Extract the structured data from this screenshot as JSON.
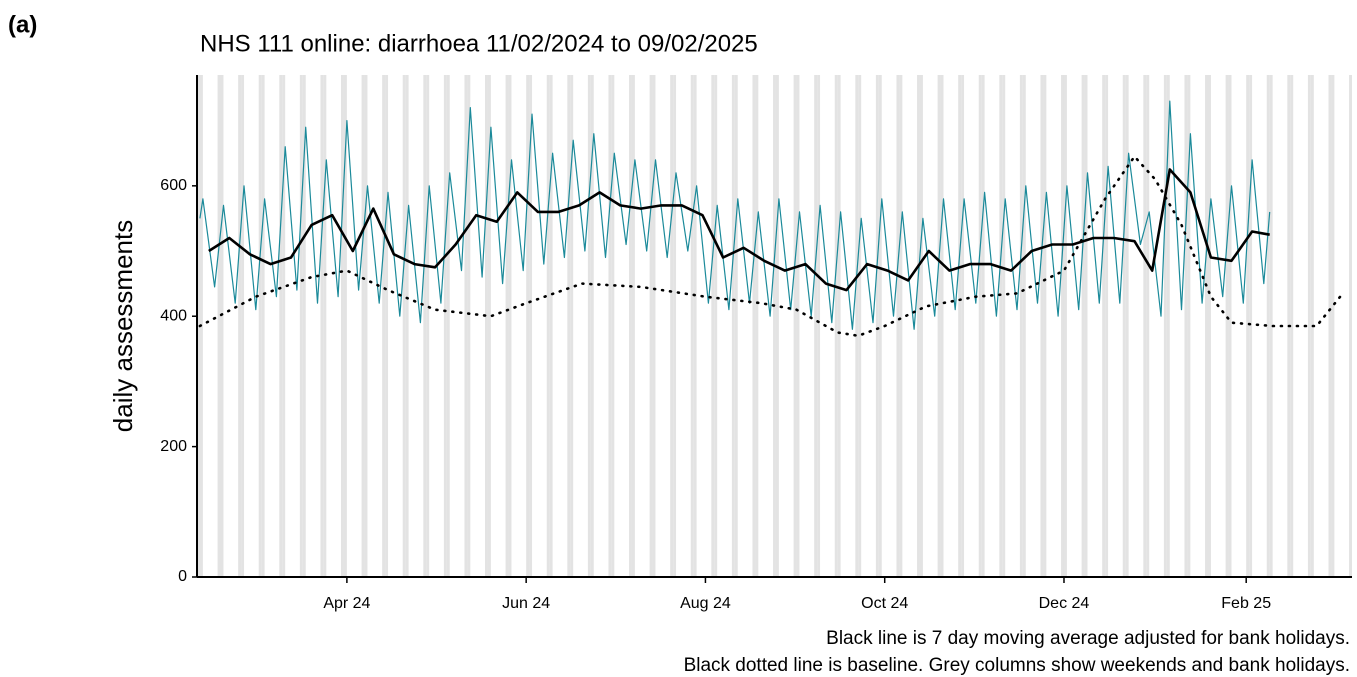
{
  "chart_data": {
    "type": "line",
    "panel_label": "(a)",
    "title": "NHS 111 online: diarrhoea 11/02/2024 to 09/02/2025",
    "y_label": "daily assessments",
    "notes": [
      "Black line is 7 day moving average adjusted for bank holidays.",
      "Black dotted line is baseline. Grey columns show weekends and bank holidays."
    ],
    "xlim": [
      "2024-02-10",
      "2025-03-09"
    ],
    "xticks": [
      {
        "value": "2024-04-01",
        "label": "Apr 24"
      },
      {
        "value": "2024-06-01",
        "label": "Jun 24"
      },
      {
        "value": "2024-08-01",
        "label": "Aug 24"
      },
      {
        "value": "2024-10-01",
        "label": "Oct 24"
      },
      {
        "value": "2024-12-01",
        "label": "Dec 24"
      },
      {
        "value": "2025-02-01",
        "label": "Feb 25"
      }
    ],
    "ylim": [
      0,
      770
    ],
    "yticks": [
      0,
      200,
      400,
      600
    ],
    "weekend_shading": true,
    "series": [
      {
        "name": "daily",
        "color": "#1b8a9a",
        "style": "thin",
        "x": [
          "2024-02-11",
          "2024-02-12",
          "2024-02-16",
          "2024-02-19",
          "2024-02-23",
          "2024-02-26",
          "2024-03-01",
          "2024-03-04",
          "2024-03-08",
          "2024-03-11",
          "2024-03-15",
          "2024-03-18",
          "2024-03-22",
          "2024-03-25",
          "2024-03-29",
          "2024-04-01",
          "2024-04-05",
          "2024-04-08",
          "2024-04-12",
          "2024-04-15",
          "2024-04-19",
          "2024-04-22",
          "2024-04-26",
          "2024-04-29",
          "2024-05-03",
          "2024-05-06",
          "2024-05-10",
          "2024-05-13",
          "2024-05-17",
          "2024-05-20",
          "2024-05-24",
          "2024-05-27",
          "2024-05-31",
          "2024-06-03",
          "2024-06-07",
          "2024-06-10",
          "2024-06-14",
          "2024-06-17",
          "2024-06-21",
          "2024-06-24",
          "2024-06-28",
          "2024-07-01",
          "2024-07-05",
          "2024-07-08",
          "2024-07-12",
          "2024-07-15",
          "2024-07-19",
          "2024-07-22",
          "2024-07-26",
          "2024-07-29",
          "2024-08-02",
          "2024-08-05",
          "2024-08-09",
          "2024-08-12",
          "2024-08-16",
          "2024-08-19",
          "2024-08-23",
          "2024-08-26",
          "2024-08-30",
          "2024-09-02",
          "2024-09-06",
          "2024-09-09",
          "2024-09-13",
          "2024-09-16",
          "2024-09-20",
          "2024-09-23",
          "2024-09-27",
          "2024-09-30",
          "2024-10-04",
          "2024-10-07",
          "2024-10-11",
          "2024-10-14",
          "2024-10-18",
          "2024-10-21",
          "2024-10-25",
          "2024-10-28",
          "2024-11-01",
          "2024-11-04",
          "2024-11-08",
          "2024-11-11",
          "2024-11-15",
          "2024-11-18",
          "2024-11-22",
          "2024-11-25",
          "2024-11-29",
          "2024-12-02",
          "2024-12-06",
          "2024-12-09",
          "2024-12-13",
          "2024-12-16",
          "2024-12-20",
          "2024-12-23",
          "2024-12-27",
          "2024-12-30",
          "2025-01-03",
          "2025-01-06",
          "2025-01-10",
          "2025-01-13",
          "2025-01-17",
          "2025-01-20",
          "2025-01-24",
          "2025-01-27",
          "2025-01-31",
          "2025-02-03",
          "2025-02-07",
          "2025-02-09"
        ],
        "values": [
          550,
          580,
          445,
          570,
          420,
          600,
          410,
          580,
          430,
          660,
          440,
          690,
          420,
          640,
          430,
          700,
          440,
          600,
          420,
          590,
          400,
          570,
          390,
          600,
          420,
          620,
          470,
          720,
          460,
          690,
          450,
          640,
          470,
          710,
          480,
          650,
          490,
          670,
          500,
          680,
          490,
          650,
          510,
          640,
          500,
          640,
          490,
          620,
          500,
          600,
          420,
          570,
          410,
          580,
          420,
          560,
          400,
          580,
          410,
          560,
          400,
          570,
          390,
          560,
          380,
          550,
          390,
          580,
          400,
          560,
          380,
          550,
          400,
          580,
          410,
          580,
          420,
          590,
          400,
          580,
          410,
          600,
          420,
          590,
          400,
          600,
          410,
          620,
          420,
          630,
          420,
          650,
          510,
          560,
          400,
          730,
          410,
          680,
          420,
          580,
          430,
          600,
          420,
          640,
          450,
          560
        ]
      },
      {
        "name": "7 day moving average",
        "color": "#000000",
        "style": "thick",
        "x": [
          "2024-02-14",
          "2024-02-21",
          "2024-02-28",
          "2024-03-06",
          "2024-03-13",
          "2024-03-20",
          "2024-03-27",
          "2024-04-03",
          "2024-04-10",
          "2024-04-17",
          "2024-04-24",
          "2024-05-01",
          "2024-05-08",
          "2024-05-15",
          "2024-05-22",
          "2024-05-29",
          "2024-06-05",
          "2024-06-12",
          "2024-06-19",
          "2024-06-26",
          "2024-07-03",
          "2024-07-10",
          "2024-07-17",
          "2024-07-24",
          "2024-07-31",
          "2024-08-07",
          "2024-08-14",
          "2024-08-21",
          "2024-08-28",
          "2024-09-04",
          "2024-09-11",
          "2024-09-18",
          "2024-09-25",
          "2024-10-02",
          "2024-10-09",
          "2024-10-16",
          "2024-10-23",
          "2024-10-30",
          "2024-11-06",
          "2024-11-13",
          "2024-11-20",
          "2024-11-27",
          "2024-12-04",
          "2024-12-11",
          "2024-12-18",
          "2024-12-25",
          "2024-12-31",
          "2025-01-06",
          "2025-01-13",
          "2025-01-20",
          "2025-01-27",
          "2025-02-03",
          "2025-02-09"
        ],
        "values": [
          500,
          520,
          495,
          480,
          490,
          540,
          555,
          500,
          565,
          495,
          480,
          475,
          510,
          555,
          545,
          590,
          560,
          560,
          570,
          590,
          570,
          565,
          570,
          570,
          555,
          490,
          505,
          485,
          470,
          480,
          450,
          440,
          480,
          470,
          455,
          500,
          470,
          480,
          480,
          470,
          500,
          510,
          510,
          520,
          520,
          515,
          470,
          625,
          590,
          490,
          485,
          530,
          525
        ]
      },
      {
        "name": "baseline",
        "color": "#000000",
        "style": "dotted",
        "x": [
          "2024-02-11",
          "2024-03-01",
          "2024-03-20",
          "2024-04-01",
          "2024-04-15",
          "2024-05-01",
          "2024-05-20",
          "2024-06-01",
          "2024-06-20",
          "2024-07-10",
          "2024-08-01",
          "2024-08-20",
          "2024-09-01",
          "2024-09-15",
          "2024-09-22",
          "2024-10-01",
          "2024-10-15",
          "2024-11-01",
          "2024-11-15",
          "2024-12-01",
          "2024-12-15",
          "2024-12-25",
          "2025-01-01",
          "2025-01-10",
          "2025-01-20",
          "2025-01-27",
          "2025-02-10",
          "2025-02-25",
          "2025-03-05"
        ],
        "values": [
          385,
          430,
          460,
          470,
          440,
          410,
          400,
          420,
          450,
          445,
          430,
          420,
          410,
          375,
          370,
          385,
          415,
          430,
          435,
          470,
          580,
          645,
          610,
          540,
          430,
          390,
          385,
          385,
          430
        ]
      }
    ]
  }
}
